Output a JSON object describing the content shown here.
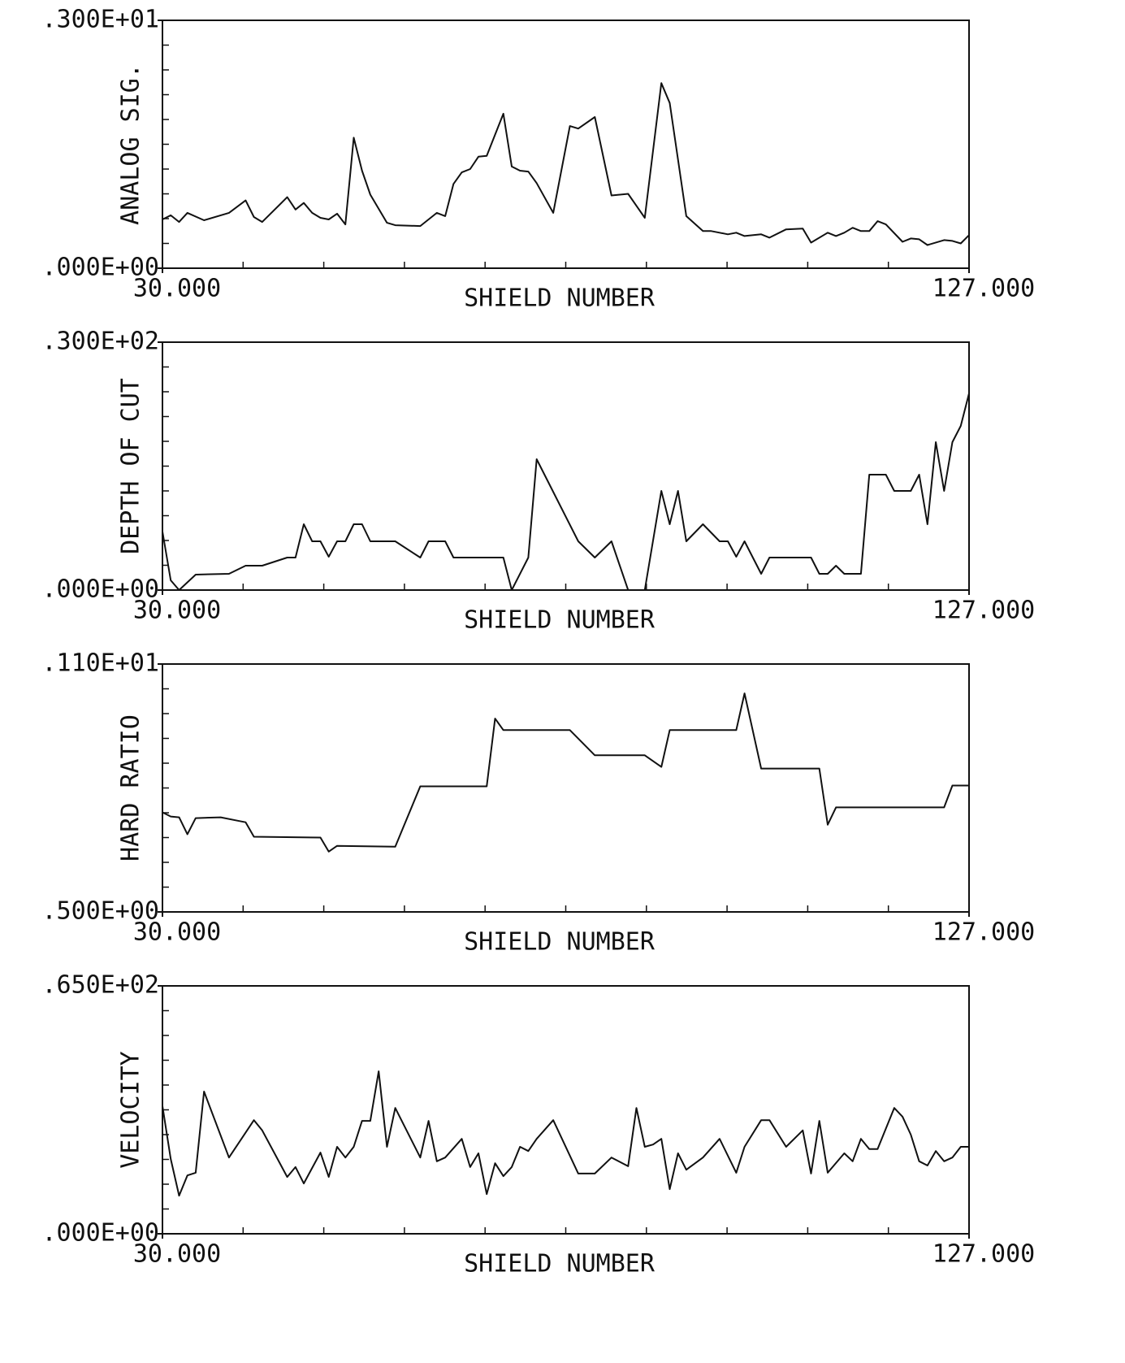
{
  "chart_data": [
    {
      "type": "line",
      "xlabel": "SHIELD NUMBER",
      "ylabel": "ANALOG SIG.",
      "color": "#111111",
      "xlim": [
        30,
        127
      ],
      "xticks": [
        {
          "value": 30,
          "label": "30.000"
        },
        {
          "value": 127,
          "label": "127.000"
        }
      ],
      "ylim": [
        0,
        3
      ],
      "yticks": [
        {
          "value": 0,
          "label": ".000E+00"
        },
        {
          "value": 3,
          "label": ".300E+01"
        }
      ],
      "x": [
        30,
        31,
        32,
        33,
        35,
        38,
        40,
        41,
        42,
        45,
        46,
        47,
        48,
        49,
        50,
        51,
        52,
        53,
        54,
        55,
        57,
        58,
        61,
        63,
        64,
        65,
        66,
        67,
        68,
        69,
        71,
        72,
        73,
        74,
        75,
        77,
        79,
        80,
        82,
        84,
        86,
        88,
        90,
        91,
        93,
        95,
        96,
        98,
        99,
        100,
        102,
        103,
        105,
        107,
        108,
        110,
        111,
        112,
        113,
        114,
        115,
        116,
        117,
        119,
        120,
        121,
        122,
        124,
        125,
        126,
        127
      ],
      "values": [
        0.59,
        0.64,
        0.56,
        0.67,
        0.58,
        0.67,
        0.82,
        0.62,
        0.56,
        0.86,
        0.71,
        0.79,
        0.67,
        0.61,
        0.59,
        0.66,
        0.53,
        1.58,
        1.18,
        0.89,
        0.55,
        0.52,
        0.51,
        0.67,
        0.63,
        1.02,
        1.16,
        1.2,
        1.35,
        1.36,
        1.87,
        1.23,
        1.18,
        1.17,
        1.03,
        0.67,
        1.72,
        1.69,
        1.83,
        0.88,
        0.9,
        0.61,
        2.24,
        2.0,
        0.63,
        0.45,
        0.45,
        0.41,
        0.43,
        0.39,
        0.41,
        0.37,
        0.47,
        0.48,
        0.31,
        0.43,
        0.39,
        0.43,
        0.49,
        0.45,
        0.45,
        0.57,
        0.53,
        0.32,
        0.36,
        0.35,
        0.28,
        0.34,
        0.33,
        0.3,
        0.4
      ]
    },
    {
      "type": "line",
      "xlabel": "SHIELD NUMBER",
      "ylabel": "DEPTH OF CUT",
      "color": "#111111",
      "xlim": [
        30,
        127
      ],
      "xticks": [
        {
          "value": 30,
          "label": "30.000"
        },
        {
          "value": 127,
          "label": "127.000"
        }
      ],
      "ylim": [
        0,
        30
      ],
      "yticks": [
        {
          "value": 0,
          "label": ".000E+00"
        },
        {
          "value": 30,
          "label": ".300E+02"
        }
      ],
      "x": [
        30,
        31,
        32,
        34,
        38,
        40,
        42,
        45,
        46,
        47,
        48,
        49,
        50,
        51,
        52,
        53,
        54,
        55,
        58,
        61,
        62,
        64,
        65,
        71,
        72,
        74,
        75,
        80,
        82,
        84,
        86,
        88,
        90,
        91,
        92,
        93,
        95,
        97,
        98,
        99,
        100,
        102,
        103,
        108,
        109,
        110,
        111,
        112,
        114,
        115,
        117,
        118,
        120,
        121,
        122,
        123,
        124,
        125,
        126,
        127
      ],
      "values": [
        7.08,
        1.18,
        0,
        1.87,
        1.97,
        2.95,
        2.95,
        3.93,
        3.93,
        7.97,
        5.9,
        5.9,
        4.03,
        5.9,
        5.9,
        7.97,
        7.97,
        5.9,
        5.9,
        3.93,
        5.9,
        5.9,
        3.93,
        3.93,
        0,
        3.93,
        15.84,
        5.9,
        3.93,
        5.9,
        0,
        0,
        12.0,
        7.97,
        12.0,
        5.9,
        7.97,
        5.9,
        5.9,
        4.03,
        5.9,
        1.97,
        3.93,
        3.93,
        1.97,
        1.97,
        2.95,
        1.97,
        1.97,
        13.97,
        13.97,
        12.0,
        12.0,
        13.97,
        7.97,
        17.9,
        12.0,
        17.9,
        19.87,
        23.8
      ]
    },
    {
      "type": "line",
      "xlabel": "SHIELD NUMBER",
      "ylabel": "HARD RATIO",
      "color": "#111111",
      "xlim": [
        30,
        127
      ],
      "xticks": [
        {
          "value": 30,
          "label": "30.000"
        },
        {
          "value": 127,
          "label": "127.000"
        }
      ],
      "ylim": [
        0.5,
        1.1
      ],
      "yticks": [
        {
          "value": 0.5,
          "label": ".500E+00"
        },
        {
          "value": 1.1,
          "label": ".110E+01"
        }
      ],
      "x": [
        30,
        31,
        32,
        33,
        34,
        37,
        39,
        40,
        41,
        49,
        50,
        51,
        58,
        61,
        69,
        70,
        71,
        79,
        82,
        88,
        90,
        91,
        99,
        100,
        102,
        109,
        110,
        111,
        124,
        125,
        127
      ],
      "values": [
        0.741,
        0.731,
        0.729,
        0.688,
        0.727,
        0.729,
        0.721,
        0.717,
        0.682,
        0.68,
        0.646,
        0.66,
        0.658,
        0.804,
        0.804,
        0.968,
        0.94,
        0.94,
        0.879,
        0.879,
        0.851,
        0.94,
        0.94,
        1.029,
        0.847,
        0.847,
        0.711,
        0.753,
        0.753,
        0.806,
        0.806
      ]
    },
    {
      "type": "line",
      "xlabel": "SHIELD NUMBER",
      "ylabel": "VELOCITY",
      "color": "#111111",
      "xlim": [
        30,
        127
      ],
      "xticks": [
        {
          "value": 30,
          "label": "30.000"
        },
        {
          "value": 127,
          "label": "127.000"
        }
      ],
      "ylim": [
        0,
        65
      ],
      "yticks": [
        {
          "value": 0,
          "label": ".000E+00"
        },
        {
          "value": 65,
          "label": ".650E+02"
        }
      ],
      "x": [
        30,
        31,
        32,
        33,
        34,
        35,
        38,
        41,
        42,
        45,
        46,
        47,
        49,
        50,
        51,
        52,
        53,
        54,
        55,
        56,
        57,
        58,
        61,
        62,
        63,
        64,
        66,
        67,
        68,
        69,
        70,
        71,
        72,
        73,
        74,
        75,
        77,
        80,
        82,
        84,
        86,
        87,
        88,
        89,
        90,
        91,
        92,
        93,
        95,
        97,
        99,
        100,
        102,
        103,
        105,
        107,
        108,
        109,
        110,
        112,
        113,
        114,
        115,
        116,
        118,
        119,
        120,
        121,
        122,
        123,
        124,
        125,
        126,
        127
      ],
      "values": [
        33.5,
        19.6,
        10.0,
        15.3,
        16.0,
        37.3,
        20.0,
        29.8,
        27.1,
        14.9,
        17.5,
        13.2,
        21.3,
        14.9,
        22.8,
        20.0,
        22.8,
        29.6,
        29.6,
        42.6,
        22.8,
        33.0,
        20.0,
        29.6,
        19.0,
        20.0,
        24.9,
        17.5,
        21.1,
        10.4,
        18.5,
        15.1,
        17.5,
        22.8,
        21.7,
        24.9,
        29.8,
        15.8,
        15.8,
        20.0,
        17.7,
        33.0,
        22.8,
        23.4,
        24.9,
        11.7,
        21.1,
        16.8,
        20.0,
        24.9,
        16.0,
        22.8,
        29.8,
        29.8,
        22.8,
        27.1,
        15.8,
        29.6,
        16.0,
        21.1,
        19.0,
        24.9,
        22.2,
        22.2,
        33.0,
        30.7,
        26.0,
        19.0,
        17.9,
        21.7,
        19.0,
        20.0,
        22.8,
        22.8
      ]
    }
  ]
}
